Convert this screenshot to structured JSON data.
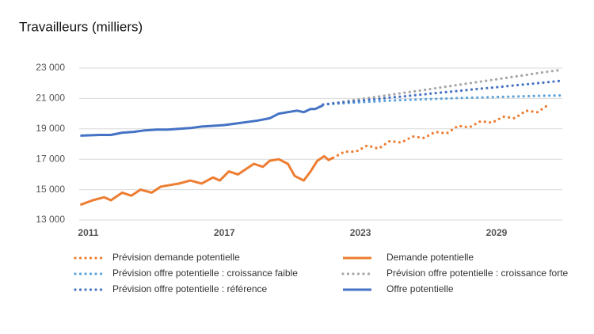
{
  "chart_data": {
    "type": "line",
    "title": "Travailleurs (milliers)",
    "xlim": [
      2010.6,
      2031.9
    ],
    "xticks": [
      2011,
      2017,
      2023,
      2029
    ],
    "ylim": [
      13000,
      23000
    ],
    "yticks": [
      {
        "value": 13000,
        "label": "13 000"
      },
      {
        "value": 15000,
        "label": "15 000"
      },
      {
        "value": 17000,
        "label": "17 000"
      },
      {
        "value": 19000,
        "label": "19 000"
      },
      {
        "value": 21000,
        "label": "21 000"
      },
      {
        "value": 23000,
        "label": "23 000"
      }
    ],
    "grid": true,
    "series": [
      {
        "name": "Prévision demande potentielle",
        "color": "#ed7d31",
        "style": "dotted",
        "x": [
          2021.8,
          2022.3,
          2022.8,
          2023.3,
          2023.8,
          2024.3,
          2024.8,
          2025.3,
          2025.8,
          2026.3,
          2026.8,
          2027.3,
          2027.8,
          2028.3,
          2028.8,
          2029.3,
          2029.8,
          2030.3,
          2030.8,
          2031.3
        ],
        "values": [
          17100,
          17500,
          17500,
          17900,
          17700,
          18200,
          18100,
          18500,
          18400,
          18800,
          18700,
          19200,
          19100,
          19500,
          19400,
          19800,
          19700,
          20200,
          20100,
          20600
        ]
      },
      {
        "name": "Demande potentielle",
        "color": "#ed7d31",
        "style": "solid",
        "x": [
          2010.65,
          2011.2,
          2011.7,
          2012.0,
          2012.5,
          2012.9,
          2013.3,
          2013.8,
          2014.2,
          2014.6,
          2015.0,
          2015.5,
          2016.0,
          2016.5,
          2016.8,
          2017.2,
          2017.6,
          2017.9,
          2018.3,
          2018.7,
          2019.0,
          2019.4,
          2019.8,
          2020.1,
          2020.5,
          2020.8,
          2021.1,
          2021.4,
          2021.6,
          2021.8
        ],
        "values": [
          14000,
          14300,
          14500,
          14300,
          14800,
          14600,
          15000,
          14800,
          15200,
          15300,
          15400,
          15600,
          15400,
          15800,
          15600,
          16200,
          16000,
          16300,
          16700,
          16500,
          16900,
          17000,
          16700,
          15900,
          15600,
          16200,
          16900,
          17200,
          16950,
          17100
        ]
      },
      {
        "name": "Prévision offre potentielle : croissance faible",
        "color": "#5ba3dc",
        "style": "dotted",
        "x": [
          2021.35,
          2021.85,
          2022.35,
          2022.85,
          2023.35,
          2023.85,
          2024.35,
          2024.85,
          2025.35,
          2025.85,
          2026.35,
          2026.85,
          2027.35,
          2027.85,
          2028.35,
          2028.85,
          2029.35,
          2029.85,
          2030.35,
          2030.85,
          2031.35,
          2031.85
        ],
        "values": [
          20600,
          20650,
          20700,
          20740,
          20780,
          20820,
          20860,
          20890,
          20920,
          20950,
          20980,
          21000,
          21030,
          21050,
          21070,
          21090,
          21110,
          21130,
          21150,
          21170,
          21190,
          21200
        ]
      },
      {
        "name": "Prévision offre potentielle : croissance forte",
        "color": "#a5a5a5",
        "style": "dotted",
        "x": [
          2021.35,
          2021.85,
          2022.35,
          2022.85,
          2023.35,
          2023.85,
          2024.35,
          2024.85,
          2025.35,
          2025.85,
          2026.35,
          2026.85,
          2027.35,
          2027.85,
          2028.35,
          2028.85,
          2029.35,
          2029.85,
          2030.35,
          2030.85,
          2031.35,
          2031.85
        ],
        "values": [
          20600,
          20700,
          20810,
          20920,
          21030,
          21140,
          21250,
          21360,
          21460,
          21570,
          21680,
          21790,
          21900,
          22010,
          22120,
          22230,
          22340,
          22450,
          22560,
          22670,
          22780,
          22880
        ]
      },
      {
        "name": "Prévision offre potentielle : référence",
        "color": "#4472c4",
        "style": "dotted",
        "x": [
          2021.35,
          2021.85,
          2022.35,
          2022.85,
          2023.35,
          2023.85,
          2024.35,
          2024.85,
          2025.35,
          2025.85,
          2026.35,
          2026.85,
          2027.35,
          2027.85,
          2028.35,
          2028.85,
          2029.35,
          2029.85,
          2030.35,
          2030.85,
          2031.35,
          2031.85
        ],
        "values": [
          20600,
          20680,
          20760,
          20830,
          20910,
          20980,
          21060,
          21130,
          21210,
          21280,
          21360,
          21430,
          21500,
          21580,
          21650,
          21720,
          21790,
          21870,
          21940,
          22010,
          22090,
          22160
        ]
      },
      {
        "name": "Offre potentielle",
        "color": "#4472c4",
        "style": "solid",
        "x": [
          2010.65,
          2011.5,
          2012.0,
          2012.5,
          2013.0,
          2013.5,
          2014.0,
          2014.5,
          2015.0,
          2015.5,
          2016.0,
          2016.5,
          2017.0,
          2017.5,
          2018.0,
          2018.5,
          2019.0,
          2019.4,
          2019.8,
          2020.2,
          2020.5,
          2020.8,
          2021.0,
          2021.35
        ],
        "values": [
          18550,
          18600,
          18600,
          18750,
          18800,
          18900,
          18950,
          18950,
          19000,
          19050,
          19150,
          19200,
          19250,
          19350,
          19450,
          19550,
          19700,
          20000,
          20100,
          20200,
          20100,
          20300,
          20300,
          20550
        ]
      }
    ]
  }
}
